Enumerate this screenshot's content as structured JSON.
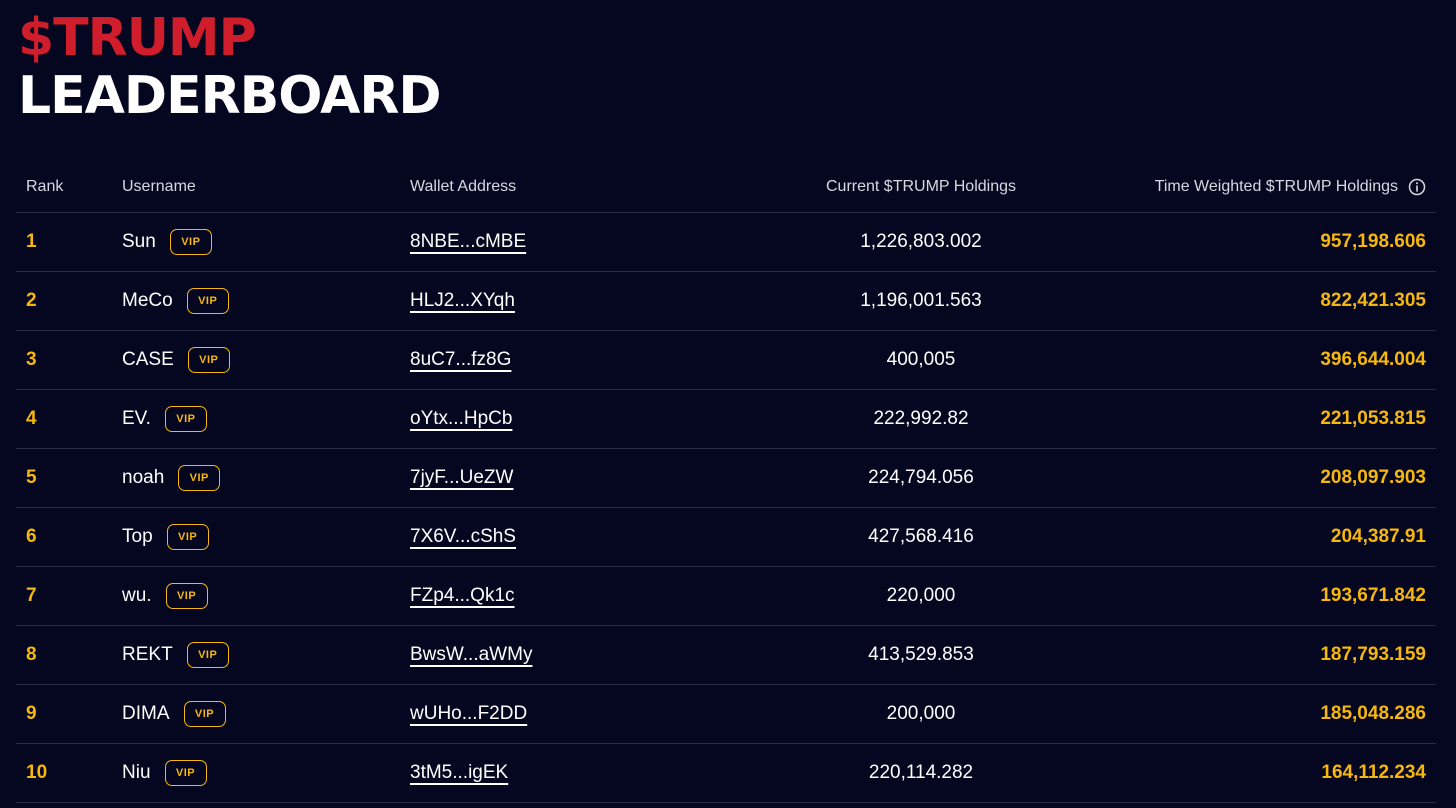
{
  "header": {
    "title_line_1": "$TRUMP",
    "title_line_2": "LEADERBOARD"
  },
  "table": {
    "columns": {
      "rank": "Rank",
      "username": "Username",
      "wallet": "Wallet Address",
      "current": "Current $TRUMP Holdings",
      "time_weighted": "Time Weighted $TRUMP Holdings"
    },
    "info_icon": "info-icon",
    "badge_label": "VIP",
    "rows": [
      {
        "rank": "1",
        "username": "Sun",
        "wallet": "8NBE...cMBE",
        "current": "1,226,803.002",
        "time_weighted": "957,198.606"
      },
      {
        "rank": "2",
        "username": "MeCo",
        "wallet": "HLJ2...XYqh",
        "current": "1,196,001.563",
        "time_weighted": "822,421.305"
      },
      {
        "rank": "3",
        "username": "CASE",
        "wallet": "8uC7...fz8G",
        "current": "400,005",
        "time_weighted": "396,644.004"
      },
      {
        "rank": "4",
        "username": "EV.",
        "wallet": "oYtx...HpCb",
        "current": "222,992.82",
        "time_weighted": "221,053.815"
      },
      {
        "rank": "5",
        "username": "noah",
        "wallet": "7jyF...UeZW",
        "current": "224,794.056",
        "time_weighted": "208,097.903"
      },
      {
        "rank": "6",
        "username": "Top",
        "wallet": "7X6V...cShS",
        "current": "427,568.416",
        "time_weighted": "204,387.91"
      },
      {
        "rank": "7",
        "username": "wu.",
        "wallet": "FZp4...Qk1c",
        "current": "220,000",
        "time_weighted": "193,671.842"
      },
      {
        "rank": "8",
        "username": "REKT",
        "wallet": "BwsW...aWMy",
        "current": "413,529.853",
        "time_weighted": "187,793.159"
      },
      {
        "rank": "9",
        "username": "DIMA",
        "wallet": "wUHo...F2DD",
        "current": "200,000",
        "time_weighted": "185,048.286"
      },
      {
        "rank": "10",
        "username": "Niu",
        "wallet": "3tM5...igEK",
        "current": "220,114.282",
        "time_weighted": "164,112.234"
      }
    ]
  },
  "colors": {
    "background": "#05061f",
    "title_red": "#cf1d2c",
    "accent_gold": "#f6b70f",
    "divider": "#2a2c44"
  }
}
